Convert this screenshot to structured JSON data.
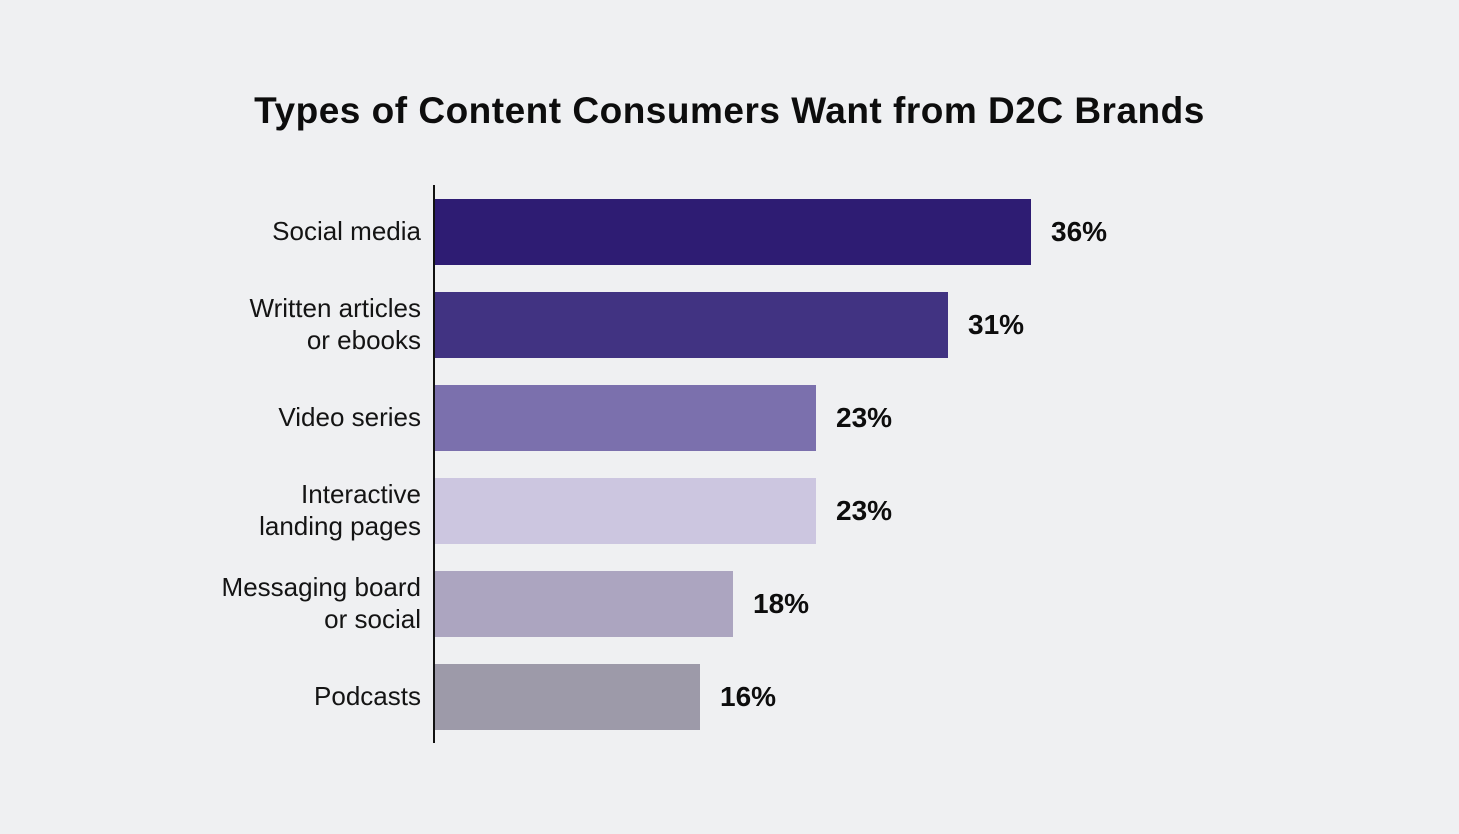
{
  "page": {
    "background_color": "#EFF0F2",
    "text_color": "#121212"
  },
  "title": "Types of Content Consumers Want from D2C Brands",
  "chart_data": {
    "type": "bar",
    "orientation": "horizontal",
    "title": "Types of Content Consumers Want from D2C Brands",
    "categories": [
      "Social media",
      "Written articles\nor ebooks",
      "Video series",
      "Interactive\nlanding pages",
      "Messaging board\nor social",
      "Podcasts"
    ],
    "values": [
      36,
      31,
      23,
      23,
      18,
      16
    ],
    "value_labels": [
      "36%",
      "31%",
      "23%",
      "23%",
      "18%",
      "16%"
    ],
    "bar_colors": [
      "#2E1C73",
      "#413382",
      "#7B70AD",
      "#CCC6E0",
      "#ACA5C0",
      "#9D9AA9"
    ],
    "axis_color": "#111111",
    "xlabel": "",
    "ylabel": "",
    "xlim": [
      0,
      36
    ],
    "grid": false,
    "legend": null,
    "value_label_position": "right-of-bar"
  }
}
